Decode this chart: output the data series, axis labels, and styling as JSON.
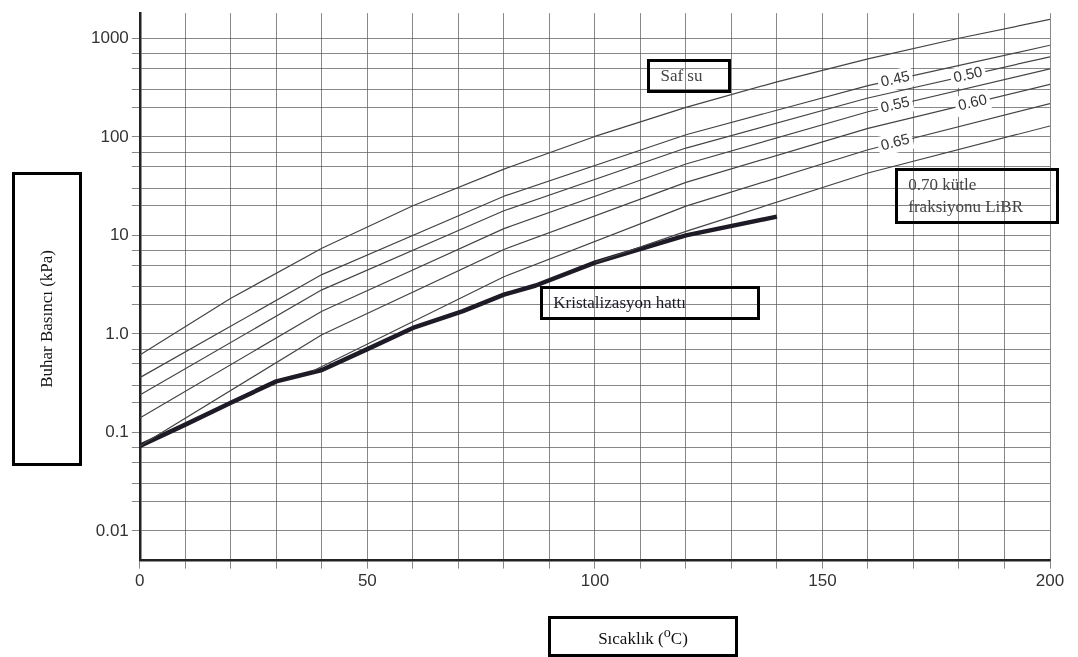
{
  "chart_data": {
    "type": "line",
    "xlabel": "Sıcaklık ($^{o}$C)",
    "ylabel": "Buhar Basıncı (kPa)",
    "log": "y",
    "grid": true,
    "legend": false,
    "marker": "none",
    "line_style": "solid",
    "xlim": [
      0,
      200
    ],
    "ylim": [
      0.005,
      1800
    ],
    "xticks": [
      0,
      {
        "value": 10,
        "label": null
      },
      {
        "value": 20,
        "label": null
      },
      {
        "value": 30,
        "label": null
      },
      {
        "value": 40,
        "label": null
      },
      50,
      {
        "value": 60,
        "label": null
      },
      {
        "value": 70,
        "label": null
      },
      {
        "value": 80,
        "label": null
      },
      {
        "value": 90,
        "label": null
      },
      100,
      {
        "value": 110,
        "label": null
      },
      {
        "value": 120,
        "label": null
      },
      {
        "value": 130,
        "label": null
      },
      {
        "value": 140,
        "label": null
      },
      150,
      {
        "value": 160,
        "label": null
      },
      {
        "value": 170,
        "label": null
      },
      {
        "value": 180,
        "label": null
      },
      {
        "value": 190,
        "label": null
      },
      200
    ],
    "yticks": [
      0.01,
      {
        "value": 0.02,
        "label": null
      },
      {
        "value": 0.03,
        "label": null
      },
      {
        "value": 0.05,
        "label": null
      },
      {
        "value": 0.07,
        "label": null
      },
      0.1,
      {
        "value": 0.2,
        "label": null
      },
      {
        "value": 0.3,
        "label": null
      },
      {
        "value": 0.5,
        "label": null
      },
      {
        "value": 0.7,
        "label": null
      },
      {
        "value": 1,
        "label": "1.0"
      },
      {
        "value": 2,
        "label": null
      },
      {
        "value": 3,
        "label": null
      },
      {
        "value": 5,
        "label": null
      },
      {
        "value": 7,
        "label": null
      },
      10,
      {
        "value": 20,
        "label": null
      },
      {
        "value": 30,
        "label": null
      },
      {
        "value": 50,
        "label": null
      },
      {
        "value": 70,
        "label": null
      },
      100,
      {
        "value": 200,
        "label": null
      },
      {
        "value": 300,
        "label": null
      },
      {
        "value": 500,
        "label": null
      },
      {
        "value": 700,
        "label": null
      },
      1000
    ],
    "series": [
      {
        "name": "Saf su",
        "color": "#444444",
        "x": [
          0,
          20,
          40,
          60,
          80,
          100,
          120,
          140,
          160,
          180,
          200
        ],
        "values": [
          0.61,
          2.3,
          7.4,
          20,
          47,
          101,
          199,
          362,
          618,
          1003,
          1555
        ]
      },
      {
        "name": "0.45",
        "color": "#444444",
        "x": [
          0,
          40,
          80,
          120,
          160,
          200
        ],
        "values": [
          0.36,
          4.0,
          25,
          105,
          331,
          851
        ]
      },
      {
        "name": "0.50",
        "color": "#444444",
        "x": [
          0,
          40,
          80,
          120,
          160,
          200
        ],
        "values": [
          0.24,
          2.8,
          17.8,
          77,
          248,
          650
        ]
      },
      {
        "name": "0.55",
        "color": "#444444",
        "x": [
          0,
          40,
          80,
          120,
          160,
          200
        ],
        "values": [
          0.14,
          1.7,
          11.7,
          53,
          180,
          489
        ]
      },
      {
        "name": "0.60",
        "color": "#444444",
        "x": [
          0,
          40,
          80,
          120,
          160,
          200
        ],
        "values": [
          0.073,
          0.98,
          7.2,
          34.5,
          122,
          341
        ]
      },
      {
        "name": "0.65",
        "color": "#444444",
        "x": [
          38,
          80,
          120,
          160,
          200
        ],
        "values": [
          0.42,
          3.8,
          19.8,
          74,
          218
        ]
      },
      {
        "name": "0.70 kütle fraksiyonu LiBR",
        "color": "#444444",
        "x": [
          100,
          120,
          160,
          200
        ],
        "values": [
          5.3,
          11,
          43,
          129
        ]
      },
      {
        "name": "Kristalizasyon hattı",
        "color": "#1e1a26",
        "x": [
          0,
          10,
          20,
          30,
          40,
          50,
          60,
          71,
          80,
          87,
          100,
          120,
          140
        ],
        "values": [
          0.073,
          0.12,
          0.2,
          0.33,
          0.43,
          0.7,
          1.15,
          1.7,
          2.5,
          3.1,
          5.3,
          10,
          15.5
        ]
      }
    ]
  }
}
